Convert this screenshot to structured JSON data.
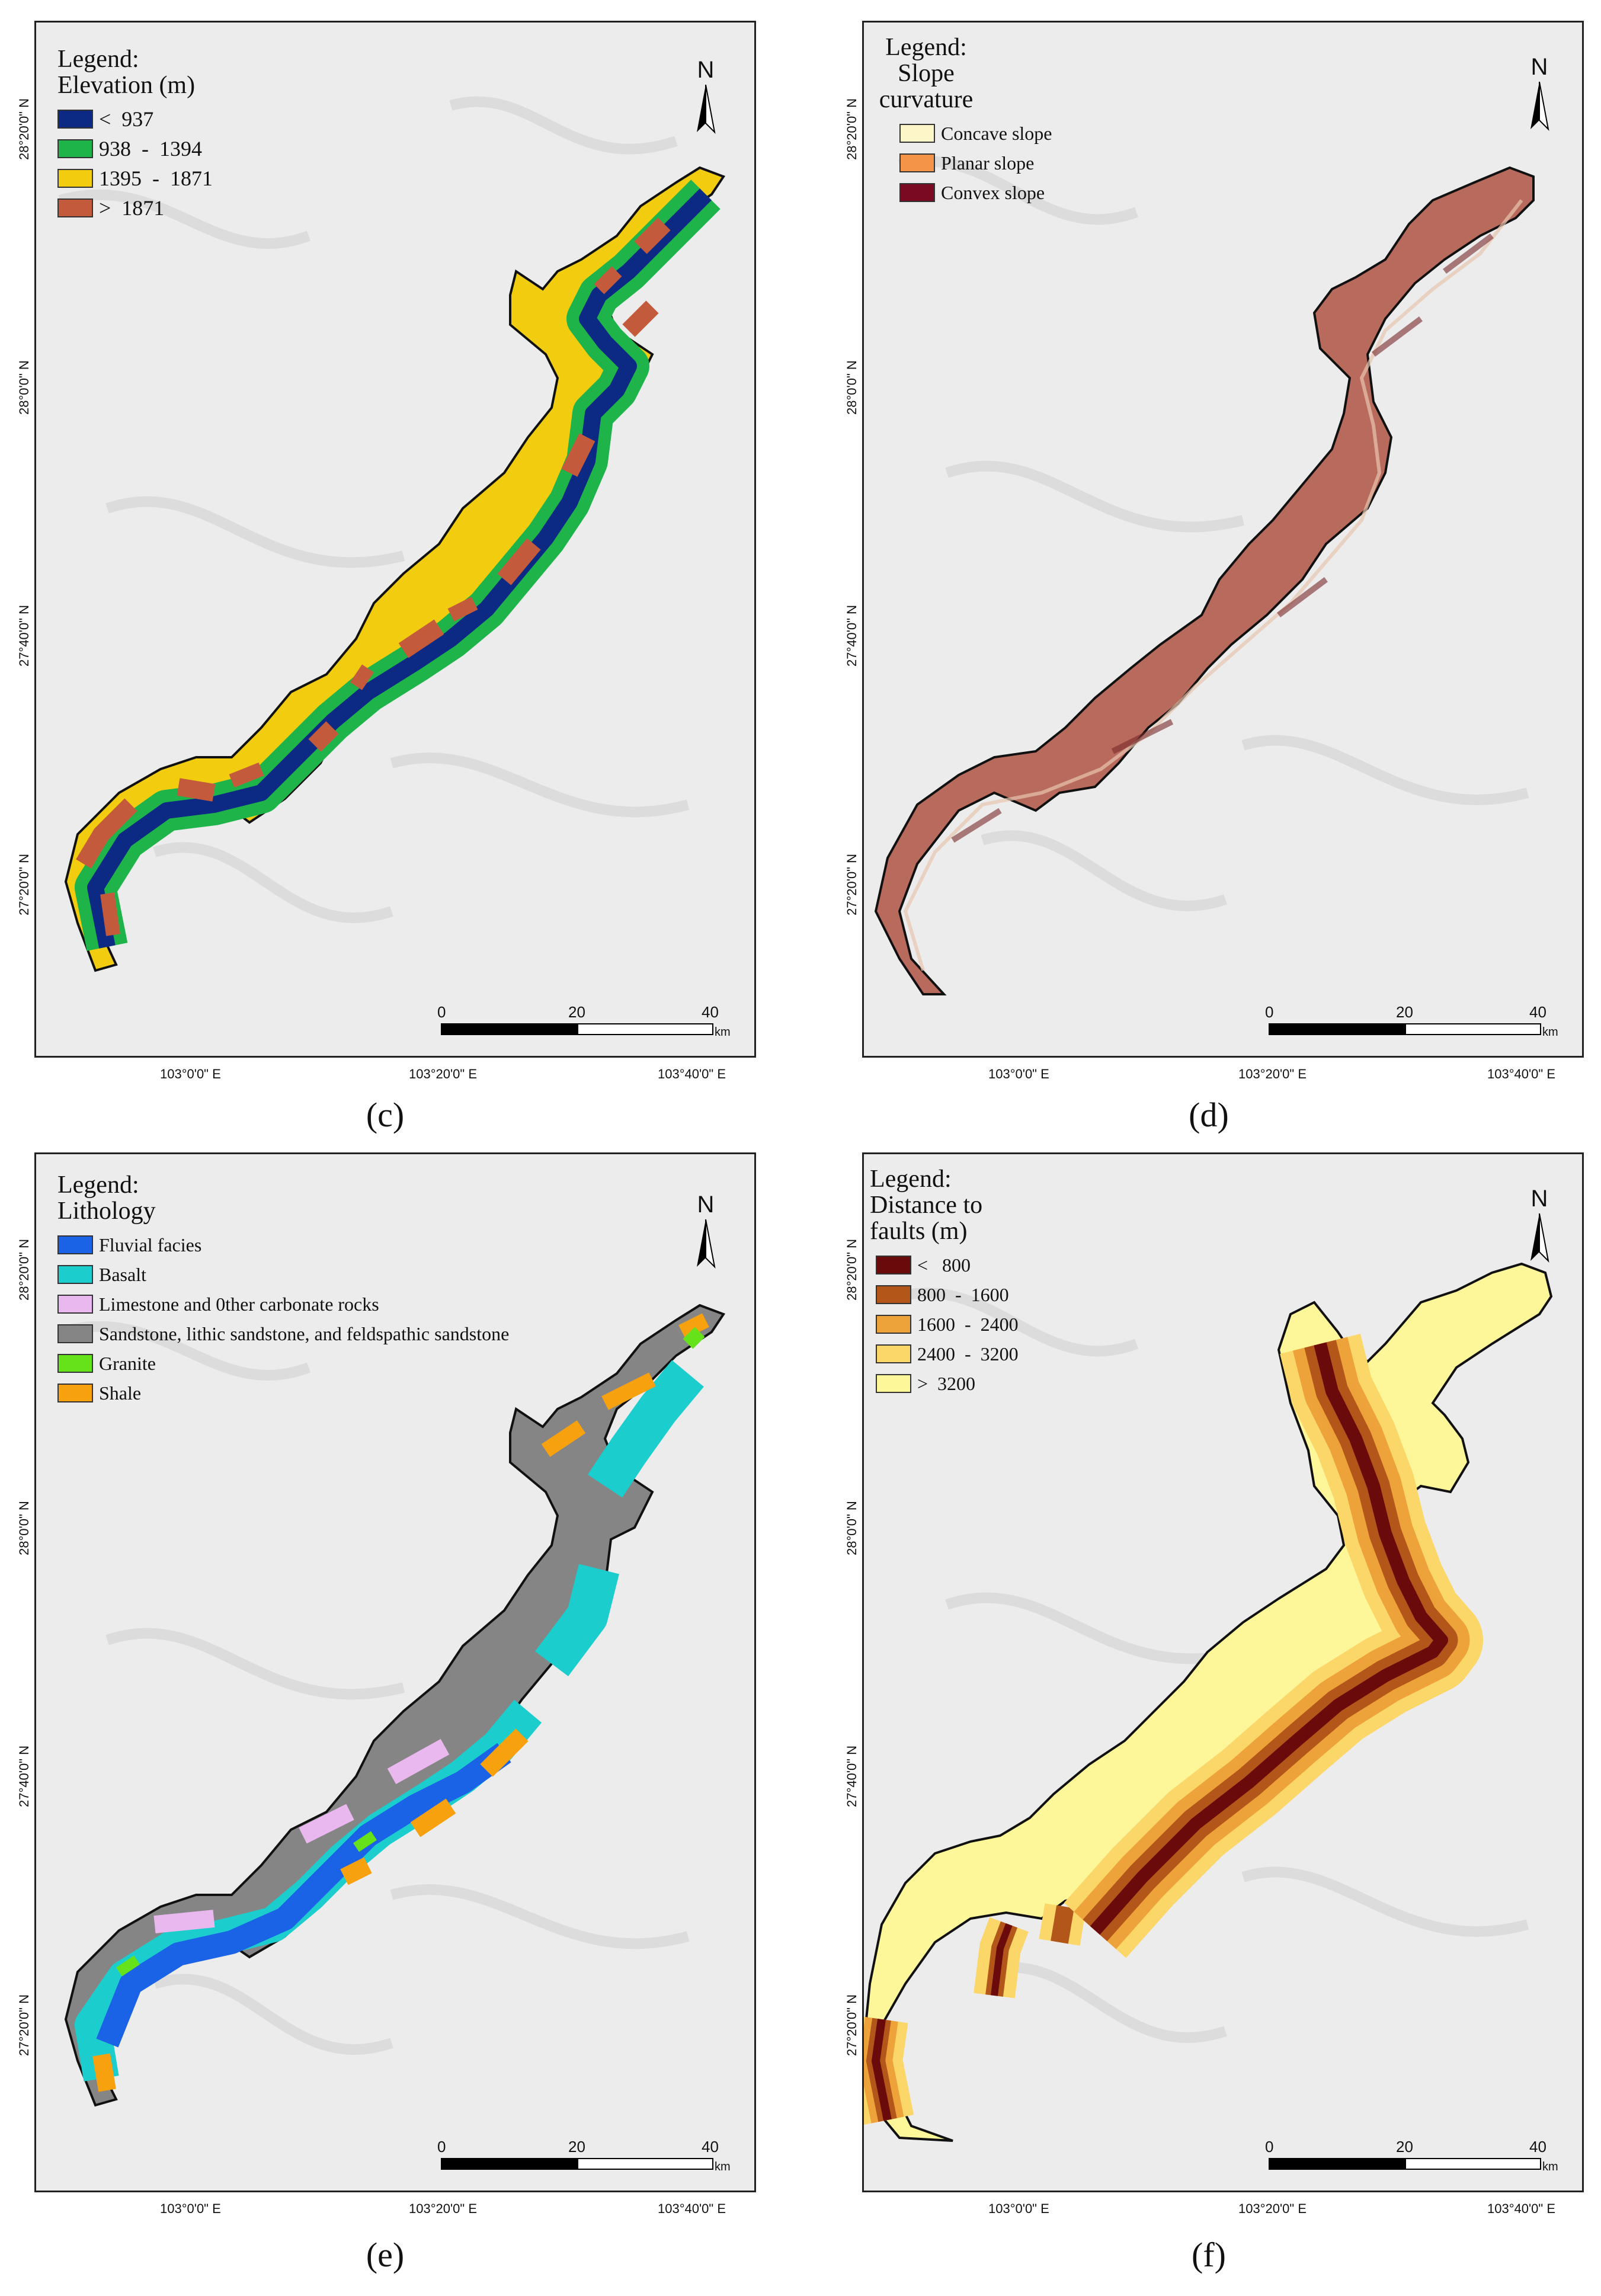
{
  "panels": {
    "c": {
      "caption": "(c)",
      "legend_title": "Legend:\nElevation (m)",
      "items": [
        {
          "label": "<  937",
          "color": "#0c2a83"
        },
        {
          "label": "938  -  1394",
          "color": "#1fb449"
        },
        {
          "label": "1395  -  1871",
          "color": "#f2cc0f"
        },
        {
          "label": ">  1871",
          "color": "#c45a3c"
        }
      ]
    },
    "d": {
      "caption": "(d)",
      "legend_title": "Legend:\nSlope\ncurvature",
      "items": [
        {
          "label": "Concave slope",
          "color": "#fdf6c8"
        },
        {
          "label": "Planar slope",
          "color": "#f39448"
        },
        {
          "label": "Convex slope",
          "color": "#7a0a22"
        }
      ]
    },
    "e": {
      "caption": "(e)",
      "legend_title": "Legend:\nLithology",
      "items": [
        {
          "label": "Fluvial facies",
          "color": "#1b63e6"
        },
        {
          "label": "Basalt",
          "color": "#1ccdcd"
        },
        {
          "label": "Limestone and 0ther carbonate rocks",
          "color": "#e8b8ee"
        },
        {
          "label": "Sandstone, lithic sandstone, and feldspathic sandstone",
          "color": "#858585"
        },
        {
          "label": "Granite",
          "color": "#66e21a"
        },
        {
          "label": "Shale",
          "color": "#f7a10e"
        }
      ]
    },
    "f": {
      "caption": "(f)",
      "legend_title": "Legend:\nDistance to\nfaults (m)",
      "items": [
        {
          "label": "<   800",
          "color": "#6b0a0a"
        },
        {
          "label": "800  -  1600",
          "color": "#b3561a"
        },
        {
          "label": "1600  -  2400",
          "color": "#eea23a"
        },
        {
          "label": "2400  -  3200",
          "color": "#fbd76a"
        },
        {
          "label": ">  3200",
          "color": "#fdf79a"
        }
      ]
    }
  },
  "north_label": "N",
  "scale": {
    "ticks": [
      "0",
      "20",
      "40"
    ],
    "unit": "km"
  },
  "lat_labels": [
    "28°20'0\" N",
    "28°0'0\" N",
    "27°40'0\" N",
    "27°20'0\" N"
  ],
  "lon_labels": [
    "103°0'0\" E",
    "103°20'0\" E",
    "103°40'0\" E"
  ]
}
